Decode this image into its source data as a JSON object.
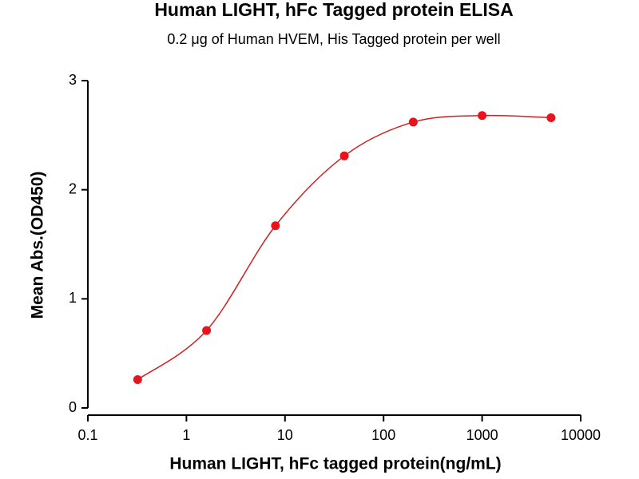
{
  "chart_data": {
    "type": "scatter",
    "title": "Human LIGHT, hFc Tagged protein ELISA",
    "subtitle": "0.2 μg of Human HVEM, His Tagged protein per well",
    "x_label": "Human LIGHT, hFc tagged protein(ng/mL)",
    "y_label": "Mean Abs.(OD450)",
    "x": [
      0.32,
      1.6,
      8,
      40,
      200,
      1000,
      5000
    ],
    "values": [
      0.26,
      0.71,
      1.67,
      2.31,
      2.62,
      2.68,
      2.66
    ],
    "color": "#e8141b",
    "line_color": "#cc2020",
    "xscale": "log",
    "xlim": [
      0.1,
      10000
    ],
    "xticks": [
      0.1,
      1,
      10,
      100,
      1000,
      10000
    ],
    "ylim": [
      0,
      3
    ],
    "yticks": [
      0,
      1,
      2,
      3
    ],
    "grid": false
  }
}
